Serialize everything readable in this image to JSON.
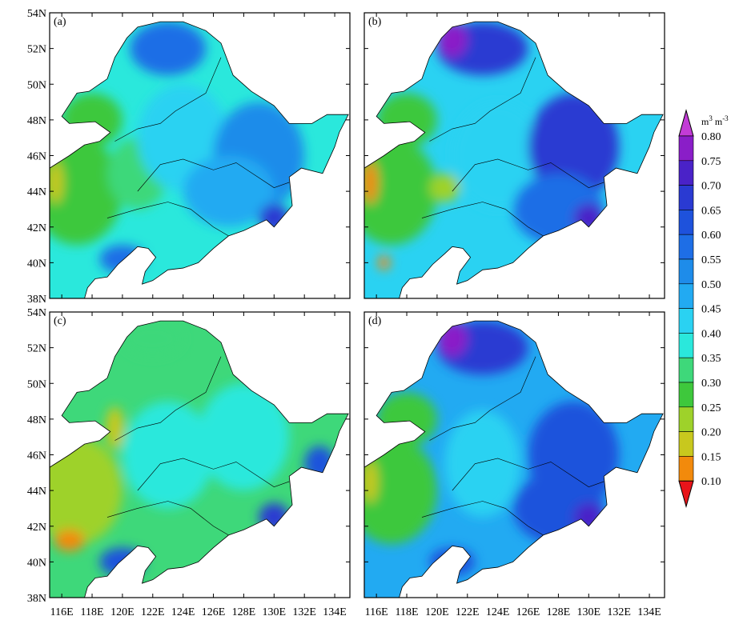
{
  "panels": [
    {
      "label": "(a)"
    },
    {
      "label": "(b)"
    },
    {
      "label": "(c)"
    },
    {
      "label": "(d)"
    }
  ],
  "lon_range": [
    115.2,
    135
  ],
  "lat_range": [
    38,
    54
  ],
  "lat_ticks": [
    {
      "value": 54,
      "label": "54N"
    },
    {
      "value": 52,
      "label": "52N"
    },
    {
      "value": 50,
      "label": "50N"
    },
    {
      "value": 48,
      "label": "48N"
    },
    {
      "value": 46,
      "label": "46N"
    },
    {
      "value": 44,
      "label": "44N"
    },
    {
      "value": 42,
      "label": "42N"
    },
    {
      "value": 40,
      "label": "40N"
    },
    {
      "value": 38,
      "label": "38N"
    }
  ],
  "lon_ticks": [
    {
      "value": 116,
      "label": "116E"
    },
    {
      "value": 118,
      "label": "118E"
    },
    {
      "value": 120,
      "label": "120E"
    },
    {
      "value": 122,
      "label": "122E"
    },
    {
      "value": 124,
      "label": "124E"
    },
    {
      "value": 126,
      "label": "126E"
    },
    {
      "value": 128,
      "label": "128E"
    },
    {
      "value": 130,
      "label": "130E"
    },
    {
      "value": 132,
      "label": "132E"
    },
    {
      "value": 134,
      "label": "134E"
    }
  ],
  "colorbar": {
    "unit": [
      "m",
      "3",
      " m",
      "-3"
    ],
    "levels": [
      {
        "value": 0.8,
        "label": "0.80"
      },
      {
        "value": 0.75,
        "label": "0.75"
      },
      {
        "value": 0.7,
        "label": "0.70"
      },
      {
        "value": 0.65,
        "label": "0.65"
      },
      {
        "value": 0.6,
        "label": "0.60"
      },
      {
        "value": 0.55,
        "label": "0.55"
      },
      {
        "value": 0.5,
        "label": "0.50"
      },
      {
        "value": 0.45,
        "label": "0.45"
      },
      {
        "value": 0.4,
        "label": "0.40"
      },
      {
        "value": 0.35,
        "label": "0.35"
      },
      {
        "value": 0.3,
        "label": "0.30"
      },
      {
        "value": 0.25,
        "label": "0.25"
      },
      {
        "value": 0.2,
        "label": "0.20"
      },
      {
        "value": 0.15,
        "label": "0.15"
      },
      {
        "value": 0.1,
        "label": "0.10"
      }
    ],
    "colors": [
      "#c23cd6",
      "#8a1ec8",
      "#4a22c8",
      "#2a3ad2",
      "#1e52dc",
      "#1e6ee6",
      "#1e8cea",
      "#22aaf2",
      "#2ad2f2",
      "#2ae8dc",
      "#3ed87a",
      "#3ec83c",
      "#9ed22a",
      "#c8c81e",
      "#f28a0c",
      "#e8141a"
    ]
  }
}
